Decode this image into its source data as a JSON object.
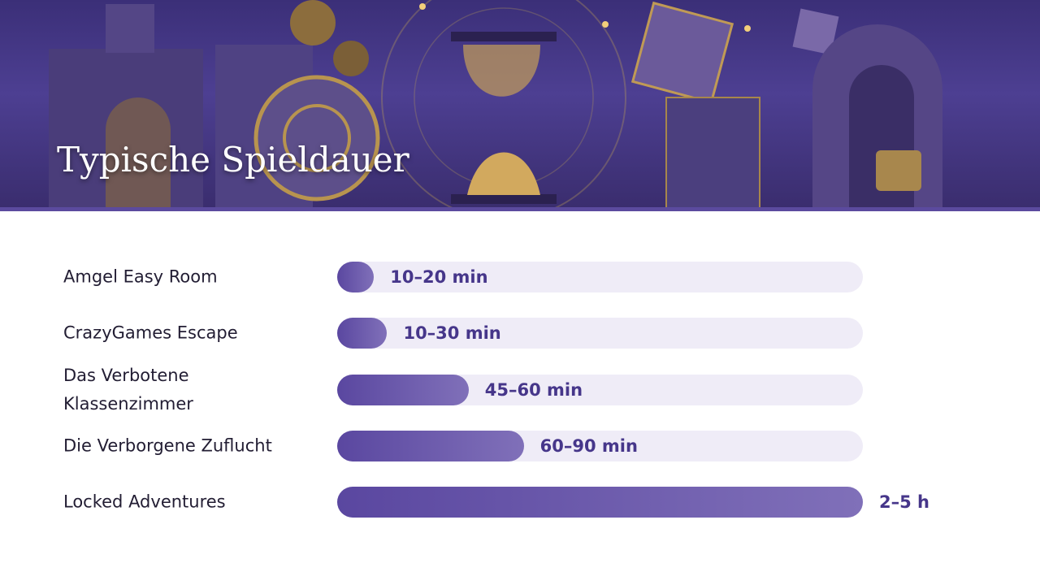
{
  "chart_data": {
    "type": "hbar",
    "title": "Typische Spieldauer",
    "categories": [
      "Amgel Easy Room",
      "CrazyGames Escape",
      "Das Verbotene Klassenzimmer",
      "Die Verborgene Zuflucht",
      "Locked Adventures"
    ],
    "values": [
      7,
      9.5,
      25,
      35.5,
      100
    ],
    "value_labels": [
      "10–20 min",
      "10–30 min",
      "45–60 min",
      "60–90 min",
      "2–5 h"
    ],
    "xlim": [
      0,
      100
    ],
    "color": "#5a47a0"
  }
}
